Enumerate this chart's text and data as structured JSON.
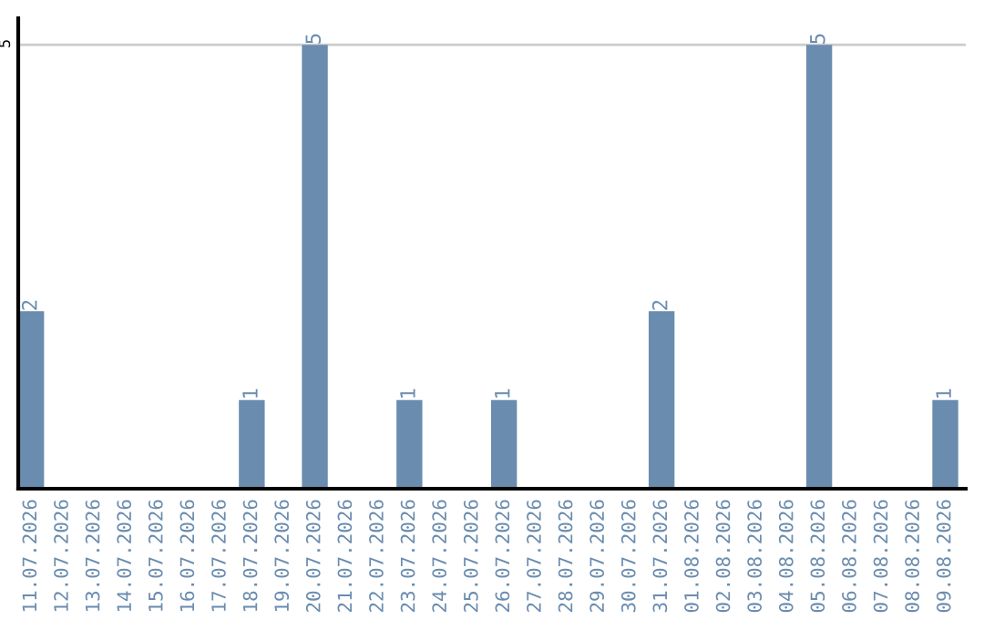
{
  "chart_data": {
    "type": "bar",
    "categories": [
      "11.07.2026",
      "12.07.2026",
      "13.07.2026",
      "14.07.2026",
      "15.07.2026",
      "16.07.2026",
      "17.07.2026",
      "18.07.2026",
      "19.07.2026",
      "20.07.2026",
      "21.07.2026",
      "22.07.2026",
      "23.07.2026",
      "24.07.2026",
      "25.07.2026",
      "26.07.2026",
      "27.07.2026",
      "28.07.2026",
      "29.07.2026",
      "30.07.2026",
      "31.07.2026",
      "01.08.2026",
      "02.08.2026",
      "03.08.2026",
      "04.08.2026",
      "05.08.2026",
      "06.08.2026",
      "07.08.2026",
      "08.08.2026",
      "09.08.2026"
    ],
    "values": [
      2,
      0,
      0,
      0,
      0,
      0,
      0,
      1,
      0,
      5,
      0,
      0,
      1,
      0,
      0,
      1,
      0,
      0,
      0,
      0,
      2,
      0,
      0,
      0,
      0,
      5,
      0,
      0,
      0,
      1
    ],
    "value_labels": [
      "2",
      null,
      null,
      null,
      null,
      null,
      null,
      "1",
      null,
      "5",
      null,
      null,
      "1",
      null,
      null,
      "1",
      null,
      null,
      null,
      null,
      "2",
      null,
      null,
      null,
      null,
      "5",
      null,
      null,
      null,
      "1"
    ],
    "color": "#6a8caf",
    "ylim": [
      0,
      5.3
    ],
    "yticks": [
      5
    ],
    "grid": "y"
  }
}
